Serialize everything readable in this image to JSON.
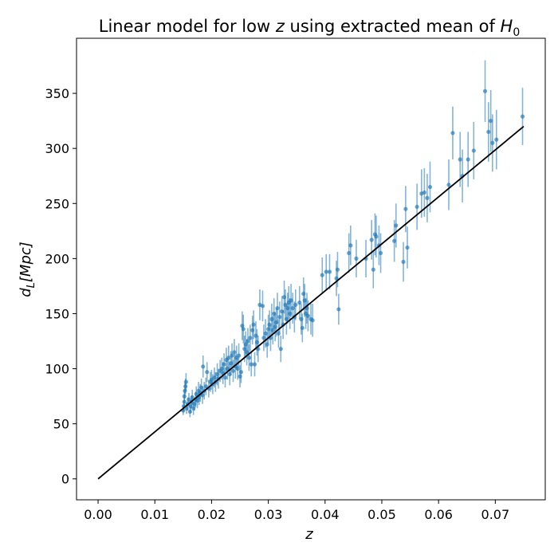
{
  "chart_data": {
    "type": "scatter",
    "title": {
      "text": "Linear model for low ",
      "var": "z",
      "mid": " using extracted mean of ",
      "param": "H",
      "param_sub": "0"
    },
    "xlabel": "z",
    "ylabel": {
      "base": "d",
      "sub": "L",
      "bracket": "[Mpc]"
    },
    "xlim": [
      -0.0038,
      0.0788
    ],
    "ylim": [
      -19,
      400
    ],
    "xticks": [
      0.0,
      0.01,
      0.02,
      0.03,
      0.04,
      0.05,
      0.06,
      0.07
    ],
    "xtick_labels": [
      "0.00",
      "0.01",
      "0.02",
      "0.03",
      "0.04",
      "0.05",
      "0.06",
      "0.07"
    ],
    "yticks": [
      0,
      50,
      100,
      150,
      200,
      250,
      300,
      350
    ],
    "ytick_labels": [
      "0",
      "50",
      "100",
      "150",
      "200",
      "250",
      "300",
      "350"
    ],
    "grid": false,
    "colors": {
      "points": "#1f77b4",
      "fit_line": "#000000"
    },
    "fit_line": {
      "x": [
        0.0,
        0.075
      ],
      "y": [
        0,
        320
      ]
    },
    "series": [
      {
        "points": [
          [
            0.015,
            62,
            4
          ],
          [
            0.0151,
            66,
            5
          ],
          [
            0.0152,
            70,
            6
          ],
          [
            0.0152,
            75,
            6
          ],
          [
            0.0153,
            80,
            7
          ],
          [
            0.0154,
            84,
            7
          ],
          [
            0.0155,
            88,
            8
          ],
          [
            0.0156,
            64,
            5
          ],
          [
            0.0158,
            68,
            6
          ],
          [
            0.016,
            72,
            6
          ],
          [
            0.0162,
            61,
            5
          ],
          [
            0.0163,
            66,
            6
          ],
          [
            0.0165,
            70,
            6
          ],
          [
            0.0166,
            74,
            7
          ],
          [
            0.0168,
            64,
            6
          ],
          [
            0.017,
            68,
            6
          ],
          [
            0.0172,
            72,
            7
          ],
          [
            0.0173,
            77,
            7
          ],
          [
            0.0175,
            71,
            7
          ],
          [
            0.0177,
            80,
            8
          ],
          [
            0.0178,
            74,
            7
          ],
          [
            0.018,
            78,
            8
          ],
          [
            0.0182,
            83,
            8
          ],
          [
            0.0184,
            76,
            8
          ],
          [
            0.0185,
            102,
            10
          ],
          [
            0.0187,
            80,
            8
          ],
          [
            0.019,
            84,
            8
          ],
          [
            0.0192,
            97,
            9
          ],
          [
            0.0195,
            82,
            8
          ],
          [
            0.0198,
            88,
            9
          ],
          [
            0.02,
            90,
            9
          ],
          [
            0.0202,
            86,
            9
          ],
          [
            0.0205,
            92,
            9
          ],
          [
            0.0207,
            88,
            9
          ],
          [
            0.021,
            95,
            10
          ],
          [
            0.0212,
            91,
            9
          ],
          [
            0.0215,
            98,
            10
          ],
          [
            0.0218,
            100,
            10
          ],
          [
            0.022,
            96,
            10
          ],
          [
            0.0222,
            104,
            10
          ],
          [
            0.0224,
            92,
            9
          ],
          [
            0.0226,
            108,
            11
          ],
          [
            0.0228,
            100,
            10
          ],
          [
            0.023,
            110,
            11
          ],
          [
            0.0232,
            95,
            10
          ],
          [
            0.0234,
            105,
            11
          ],
          [
            0.0236,
            112,
            11
          ],
          [
            0.0238,
            98,
            10
          ],
          [
            0.024,
            115,
            12
          ],
          [
            0.0242,
            102,
            11
          ],
          [
            0.0244,
            110,
            11
          ],
          [
            0.0246,
            100,
            10
          ],
          [
            0.0248,
            112,
            11
          ],
          [
            0.025,
            93,
            10
          ],
          [
            0.0252,
            97,
            10
          ],
          [
            0.0254,
            139,
            13
          ],
          [
            0.0256,
            136,
            13
          ],
          [
            0.0258,
            118,
            12
          ],
          [
            0.026,
            122,
            12
          ],
          [
            0.0262,
            115,
            12
          ],
          [
            0.0264,
            125,
            12
          ],
          [
            0.0266,
            110,
            12
          ],
          [
            0.0268,
            128,
            12
          ],
          [
            0.027,
            104,
            11
          ],
          [
            0.0272,
            135,
            13
          ],
          [
            0.0274,
            140,
            13
          ],
          [
            0.0276,
            104,
            11
          ],
          [
            0.0278,
            130,
            13
          ],
          [
            0.028,
            124,
            12
          ],
          [
            0.0282,
            118,
            12
          ],
          [
            0.0285,
            158,
            14
          ],
          [
            0.029,
            157,
            14
          ],
          [
            0.0292,
            128,
            12
          ],
          [
            0.0295,
            132,
            13
          ],
          [
            0.0298,
            122,
            12
          ],
          [
            0.03,
            136,
            13
          ],
          [
            0.0302,
            140,
            13
          ],
          [
            0.0304,
            128,
            12
          ],
          [
            0.0306,
            145,
            14
          ],
          [
            0.0308,
            135,
            13
          ],
          [
            0.031,
            150,
            14
          ],
          [
            0.0312,
            138,
            13
          ],
          [
            0.0314,
            142,
            13
          ],
          [
            0.0316,
            155,
            14
          ],
          [
            0.0318,
            132,
            13
          ],
          [
            0.032,
            147,
            14
          ],
          [
            0.0322,
            118,
            12
          ],
          [
            0.0324,
            152,
            14
          ],
          [
            0.0326,
            140,
            13
          ],
          [
            0.0328,
            165,
            15
          ],
          [
            0.033,
            158,
            14
          ],
          [
            0.0332,
            145,
            14
          ],
          [
            0.0334,
            155,
            14
          ],
          [
            0.0336,
            160,
            15
          ],
          [
            0.0338,
            150,
            14
          ],
          [
            0.034,
            162,
            15
          ],
          [
            0.0343,
            155,
            14
          ],
          [
            0.0346,
            147,
            14
          ],
          [
            0.0348,
            158,
            14
          ],
          [
            0.0355,
            160,
            15
          ],
          [
            0.0358,
            145,
            14
          ],
          [
            0.036,
            137,
            13
          ],
          [
            0.0362,
            168,
            15
          ],
          [
            0.0364,
            162,
            15
          ],
          [
            0.0366,
            150,
            14
          ],
          [
            0.0368,
            155,
            14
          ],
          [
            0.037,
            148,
            14
          ],
          [
            0.0375,
            145,
            14
          ],
          [
            0.0378,
            144,
            15
          ],
          [
            0.0395,
            185,
            16
          ],
          [
            0.0402,
            188,
            16
          ],
          [
            0.0408,
            188,
            16
          ],
          [
            0.042,
            182,
            16
          ],
          [
            0.0422,
            190,
            16
          ],
          [
            0.0424,
            154,
            14
          ],
          [
            0.0442,
            205,
            18
          ],
          [
            0.0445,
            212,
            18
          ],
          [
            0.0455,
            200,
            17
          ],
          [
            0.0472,
            200,
            17
          ],
          [
            0.0482,
            217,
            18
          ],
          [
            0.0485,
            190,
            17
          ],
          [
            0.0488,
            222,
            19
          ],
          [
            0.049,
            220,
            19
          ],
          [
            0.0495,
            212,
            18
          ],
          [
            0.0498,
            205,
            18
          ],
          [
            0.0522,
            216,
            19
          ],
          [
            0.0525,
            230,
            20
          ],
          [
            0.0538,
            197,
            18
          ],
          [
            0.0542,
            245,
            21
          ],
          [
            0.0545,
            210,
            19
          ],
          [
            0.0562,
            247,
            21
          ],
          [
            0.057,
            259,
            22
          ],
          [
            0.0575,
            260,
            22
          ],
          [
            0.058,
            255,
            22
          ],
          [
            0.0585,
            265,
            23
          ],
          [
            0.0618,
            267,
            23
          ],
          [
            0.0625,
            314,
            24
          ],
          [
            0.0638,
            290,
            25
          ],
          [
            0.0642,
            275,
            24
          ],
          [
            0.0652,
            290,
            25
          ],
          [
            0.0662,
            298,
            26
          ],
          [
            0.0682,
            352,
            28
          ],
          [
            0.0688,
            315,
            27
          ],
          [
            0.0692,
            325,
            28
          ],
          [
            0.0695,
            305,
            26
          ],
          [
            0.0702,
            308,
            27
          ],
          [
            0.0748,
            329,
            26
          ]
        ]
      }
    ]
  }
}
